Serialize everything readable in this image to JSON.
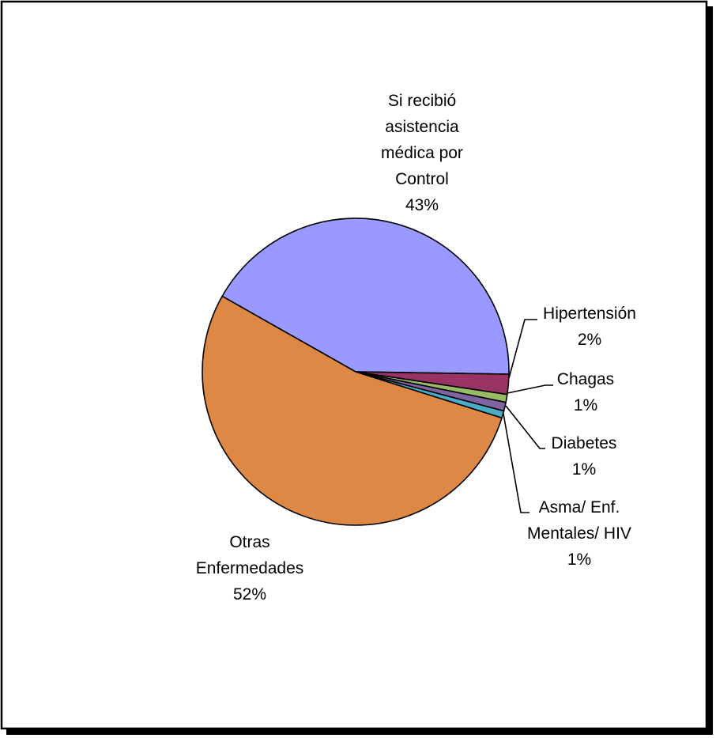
{
  "chart_data": {
    "type": "pie",
    "title": "",
    "slices": [
      {
        "label": "Si recibió asistencia médica por Control",
        "label_lines": [
          "Si recibió",
          "asistencia",
          "médica por",
          "Control"
        ],
        "value_text": "43%",
        "value": 43,
        "color": "#9999ff"
      },
      {
        "label": "Hipertensión",
        "label_lines": [
          "Hipertensión"
        ],
        "value_text": "2%",
        "value": 2,
        "color": "#993366"
      },
      {
        "label": "Chagas",
        "label_lines": [
          "Chagas"
        ],
        "value_text": "1%",
        "value": 1,
        "color": "#99bb66"
      },
      {
        "label": "Diabetes",
        "label_lines": [
          "Diabetes"
        ],
        "value_text": "1%",
        "value": 1,
        "color": "#8064a2"
      },
      {
        "label": "Asma/ Enf. Mentales/ HIV",
        "label_lines": [
          "Asma/ Enf.",
          "Mentales/ HIV"
        ],
        "value_text": "1%",
        "value": 1,
        "color": "#4bacc6"
      },
      {
        "label": "Otras Enfermedades",
        "label_lines": [
          "Otras",
          "Enfermedades"
        ],
        "value_text": "52%",
        "value": 52,
        "color": "#dd8844"
      }
    ]
  }
}
